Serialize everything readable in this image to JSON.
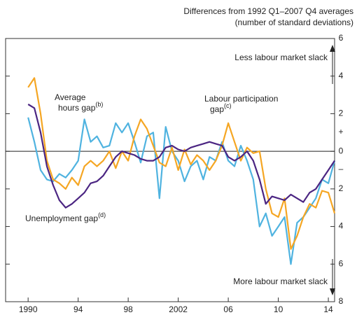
{
  "chart_data": {
    "type": "line",
    "y_label": [
      "Differences from 1992 Q1–2007 Q4 averages",
      "(number of standard deviations)"
    ],
    "xlim": [
      1988.2,
      2014.5
    ],
    "xticks": [
      {
        "value": 1990,
        "label": "1990"
      },
      {
        "value": 1994,
        "label": "94"
      },
      {
        "value": 1998,
        "label": "98"
      },
      {
        "value": 2002,
        "label": "2002"
      },
      {
        "value": 2006,
        "label": "06"
      },
      {
        "value": 2010,
        "label": "10"
      },
      {
        "value": 2014,
        "label": "14"
      }
    ],
    "ylim": [
      -8,
      6
    ],
    "yticks": [
      6,
      4,
      2,
      0,
      {
        "value": -2,
        "label": "2"
      },
      {
        "value": -4,
        "label": "4"
      },
      {
        "value": -6,
        "label": "6"
      },
      {
        "value": -8,
        "label": "8"
      }
    ],
    "signs": [
      "+",
      "–"
    ],
    "annotations": [
      "Less labour market slack",
      "More labour market slack"
    ],
    "x": [
      1990,
      1990.5,
      1991,
      1991.5,
      1992,
      1992.5,
      1993,
      1993.5,
      1994,
      1994.5,
      1995,
      1995.5,
      1996,
      1996.5,
      1997,
      1997.5,
      1998,
      1998.5,
      1999,
      1999.5,
      2000,
      2000.5,
      2001,
      2001.5,
      2002,
      2002.5,
      2003,
      2003.5,
      2004,
      2004.5,
      2005,
      2005.5,
      2006,
      2006.5,
      2007,
      2007.5,
      2008,
      2008.5,
      2009,
      2009.5,
      2010,
      2010.5,
      2011,
      2011.5,
      2012,
      2012.5,
      2013,
      2013.5,
      2014,
      2014.5
    ],
    "series": [
      {
        "label": [
          "Average",
          "hours gap"
        ],
        "note": "(b)",
        "color": "#4fb3e0",
        "values": [
          1.8,
          0.5,
          -1.0,
          -1.5,
          -1.6,
          -1.2,
          -1.4,
          -1.0,
          -0.5,
          1.7,
          0.5,
          0.8,
          0.2,
          0.3,
          1.5,
          1.0,
          1.5,
          0.5,
          -0.6,
          0.8,
          1.0,
          -2.5,
          1.3,
          0.0,
          -0.5,
          -1.6,
          -0.8,
          -0.5,
          -1.5,
          -0.3,
          -0.5,
          0.5,
          -0.5,
          -0.8,
          0.3,
          -0.5,
          -1.5,
          -4.0,
          -3.3,
          -4.5,
          -4.0,
          -3.5,
          -6.0,
          -3.8,
          -3.5,
          -3.0,
          -2.5,
          -1.5,
          -1.7,
          -0.5
        ]
      },
      {
        "label": [
          "Labour participation",
          "gap"
        ],
        "note": "(c)",
        "color": "#f5a623",
        "values": [
          3.4,
          3.9,
          2.0,
          -0.5,
          -1.5,
          -1.7,
          -2.0,
          -1.4,
          -1.8,
          -0.8,
          -0.5,
          -0.8,
          -0.5,
          0.0,
          -0.9,
          0.0,
          -0.5,
          0.8,
          1.7,
          1.2,
          0.3,
          -0.6,
          -0.8,
          0.2,
          -1.0,
          0.1,
          -0.7,
          -0.2,
          -0.5,
          -1.0,
          -0.5,
          0.3,
          1.5,
          0.5,
          -0.5,
          0.2,
          -0.1,
          0.0,
          -2.0,
          -3.3,
          -3.5,
          -2.5,
          -5.2,
          -4.5,
          -3.5,
          -2.8,
          -3.0,
          -2.1,
          -2.2,
          -3.3
        ]
      },
      {
        "label": [
          "Unemployment gap"
        ],
        "note": "(d)",
        "color": "#4b2582",
        "values": [
          2.5,
          2.3,
          1.0,
          -0.8,
          -1.8,
          -2.6,
          -3.0,
          -2.8,
          -2.5,
          -2.2,
          -1.7,
          -1.6,
          -1.3,
          -0.8,
          -0.3,
          0.0,
          -0.1,
          -0.2,
          -0.4,
          -0.5,
          -0.5,
          -0.3,
          0.2,
          0.3,
          0.1,
          0.0,
          0.2,
          0.3,
          0.4,
          0.5,
          0.4,
          0.3,
          -0.3,
          -0.5,
          -0.3,
          0.0,
          -0.5,
          -1.5,
          -2.8,
          -2.4,
          -2.5,
          -2.6,
          -2.3,
          -2.5,
          -2.7,
          -2.2,
          -2.0,
          -1.5,
          -1.0,
          -0.5
        ]
      }
    ]
  }
}
